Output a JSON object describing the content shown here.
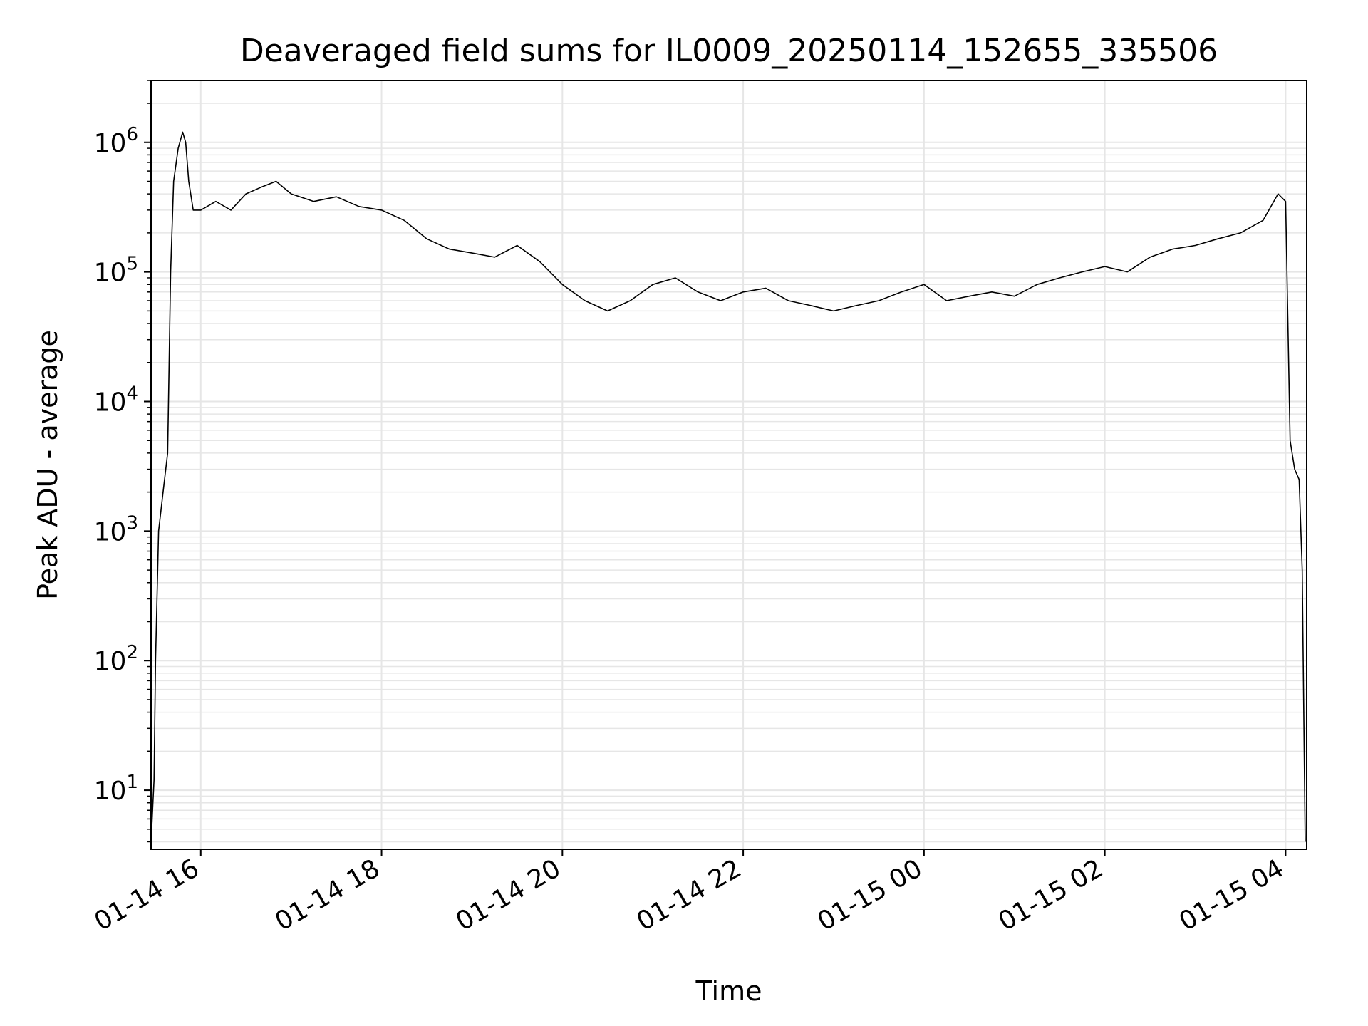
{
  "chart_data": {
    "type": "line",
    "title": "Deaveraged field sums for IL0009_20250114_152655_335506",
    "xlabel": "Time",
    "ylabel": "Peak ADU - average",
    "yscale": "log",
    "ylim": [
      3.5,
      3000000
    ],
    "xlim": [
      "2025-01-14 15:27",
      "2025-01-15 04:14"
    ],
    "x_ticks": [
      "2025-01-14 16:00",
      "2025-01-14 18:00",
      "2025-01-14 20:00",
      "2025-01-14 22:00",
      "2025-01-15 00:00",
      "2025-01-15 02:00",
      "2025-01-15 04:00"
    ],
    "x_tick_labels": [
      "01-14 16",
      "01-14 18",
      "01-14 20",
      "01-14 22",
      "01-15 00",
      "01-15 02",
      "01-15 04"
    ],
    "y_ticks": [
      10,
      100,
      1000,
      10000,
      100000,
      1000000
    ],
    "y_tick_labels": [
      {
        "base": "10",
        "exp": "1"
      },
      {
        "base": "10",
        "exp": "2"
      },
      {
        "base": "10",
        "exp": "3"
      },
      {
        "base": "10",
        "exp": "4"
      },
      {
        "base": "10",
        "exp": "5"
      },
      {
        "base": "10",
        "exp": "6"
      }
    ],
    "grid": true,
    "line_color": "#000000",
    "grid_color": "#e6e6e6",
    "series": [
      {
        "x": [
          "2025-01-14 15:27",
          "2025-01-14 15:29",
          "2025-01-14 15:30",
          "2025-01-14 15:32",
          "2025-01-14 15:35",
          "2025-01-14 15:38",
          "2025-01-14 15:40",
          "2025-01-14 15:42",
          "2025-01-14 15:45",
          "2025-01-14 15:48",
          "2025-01-14 15:50",
          "2025-01-14 15:52",
          "2025-01-14 15:55",
          "2025-01-14 16:00",
          "2025-01-14 16:10",
          "2025-01-14 16:20",
          "2025-01-14 16:30",
          "2025-01-14 16:40",
          "2025-01-14 16:50",
          "2025-01-14 17:00",
          "2025-01-14 17:15",
          "2025-01-14 17:30",
          "2025-01-14 17:45",
          "2025-01-14 18:00",
          "2025-01-14 18:15",
          "2025-01-14 18:30",
          "2025-01-14 18:45",
          "2025-01-14 19:00",
          "2025-01-14 19:15",
          "2025-01-14 19:30",
          "2025-01-14 19:45",
          "2025-01-14 20:00",
          "2025-01-14 20:15",
          "2025-01-14 20:30",
          "2025-01-14 20:45",
          "2025-01-14 21:00",
          "2025-01-14 21:15",
          "2025-01-14 21:30",
          "2025-01-14 21:45",
          "2025-01-14 22:00",
          "2025-01-14 22:15",
          "2025-01-14 22:30",
          "2025-01-14 22:45",
          "2025-01-14 23:00",
          "2025-01-14 23:15",
          "2025-01-14 23:30",
          "2025-01-14 23:45",
          "2025-01-15 00:00",
          "2025-01-15 00:15",
          "2025-01-15 00:30",
          "2025-01-15 00:45",
          "2025-01-15 01:00",
          "2025-01-15 01:15",
          "2025-01-15 01:30",
          "2025-01-15 01:45",
          "2025-01-15 02:00",
          "2025-01-15 02:15",
          "2025-01-15 02:30",
          "2025-01-15 02:45",
          "2025-01-15 03:00",
          "2025-01-15 03:15",
          "2025-01-15 03:30",
          "2025-01-15 03:45",
          "2025-01-15 03:55",
          "2025-01-15 04:00",
          "2025-01-15 04:03",
          "2025-01-15 04:06",
          "2025-01-15 04:09",
          "2025-01-15 04:11",
          "2025-01-15 04:13"
        ],
        "y": [
          4,
          12,
          100,
          1000,
          2000,
          4000,
          100000,
          500000,
          900000,
          1200000,
          1000000,
          500000,
          300000,
          300000,
          350000,
          300000,
          400000,
          450000,
          500000,
          400000,
          350000,
          380000,
          320000,
          300000,
          250000,
          180000,
          150000,
          140000,
          130000,
          160000,
          120000,
          80000,
          60000,
          50000,
          60000,
          80000,
          90000,
          70000,
          60000,
          70000,
          75000,
          60000,
          55000,
          50000,
          55000,
          60000,
          70000,
          80000,
          60000,
          65000,
          70000,
          65000,
          80000,
          90000,
          100000,
          110000,
          100000,
          130000,
          150000,
          160000,
          180000,
          200000,
          250000,
          400000,
          350000,
          5000,
          3000,
          2500,
          500,
          4
        ]
      }
    ]
  }
}
